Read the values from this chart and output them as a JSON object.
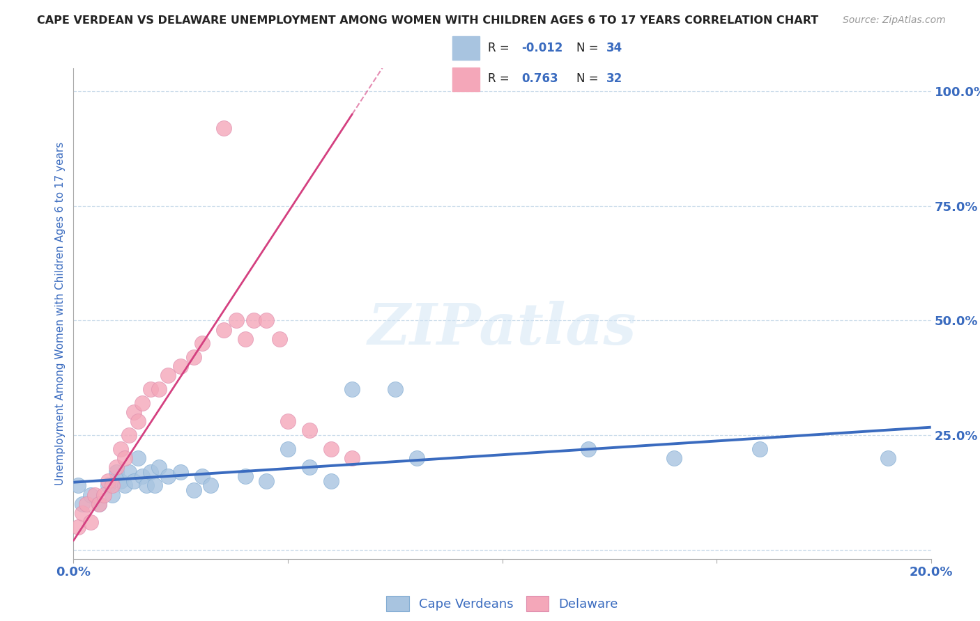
{
  "title": "CAPE VERDEAN VS DELAWARE UNEMPLOYMENT AMONG WOMEN WITH CHILDREN AGES 6 TO 17 YEARS CORRELATION CHART",
  "source": "Source: ZipAtlas.com",
  "ylabel": "Unemployment Among Women with Children Ages 6 to 17 years",
  "watermark": "ZIPatlas",
  "xlim": [
    0.0,
    0.2
  ],
  "ylim": [
    -0.02,
    1.05
  ],
  "ytick_positions": [
    0.0,
    0.25,
    0.5,
    0.75,
    1.0
  ],
  "ytick_labels": [
    "",
    "25.0%",
    "50.0%",
    "75.0%",
    "100.0%"
  ],
  "cape_verdean_color": "#a8c4e0",
  "delaware_color": "#f4a7b9",
  "trendline_cv_color": "#3a6bbf",
  "trendline_de_color": "#d44080",
  "legend_r_cv": "-0.012",
  "legend_n_cv": "34",
  "legend_r_de": "0.763",
  "legend_n_de": "32",
  "cv_x": [
    0.001,
    0.002,
    0.004,
    0.006,
    0.008,
    0.009,
    0.01,
    0.011,
    0.012,
    0.013,
    0.014,
    0.015,
    0.016,
    0.017,
    0.018,
    0.019,
    0.02,
    0.022,
    0.025,
    0.028,
    0.03,
    0.032,
    0.04,
    0.045,
    0.05,
    0.055,
    0.06,
    0.065,
    0.075,
    0.08,
    0.12,
    0.14,
    0.16,
    0.19
  ],
  "cv_y": [
    0.14,
    0.1,
    0.12,
    0.1,
    0.14,
    0.12,
    0.17,
    0.15,
    0.14,
    0.17,
    0.15,
    0.2,
    0.16,
    0.14,
    0.17,
    0.14,
    0.18,
    0.16,
    0.17,
    0.13,
    0.16,
    0.14,
    0.16,
    0.15,
    0.22,
    0.18,
    0.15,
    0.35,
    0.35,
    0.2,
    0.22,
    0.2,
    0.22,
    0.2
  ],
  "de_x": [
    0.001,
    0.002,
    0.003,
    0.004,
    0.005,
    0.006,
    0.007,
    0.008,
    0.009,
    0.01,
    0.011,
    0.012,
    0.013,
    0.014,
    0.015,
    0.016,
    0.018,
    0.02,
    0.022,
    0.025,
    0.028,
    0.03,
    0.035,
    0.038,
    0.04,
    0.042,
    0.045,
    0.048,
    0.05,
    0.055,
    0.06,
    0.065
  ],
  "de_y": [
    0.05,
    0.08,
    0.1,
    0.06,
    0.12,
    0.1,
    0.12,
    0.15,
    0.14,
    0.18,
    0.22,
    0.2,
    0.25,
    0.3,
    0.28,
    0.32,
    0.35,
    0.35,
    0.38,
    0.4,
    0.42,
    0.45,
    0.48,
    0.5,
    0.46,
    0.5,
    0.5,
    0.46,
    0.28,
    0.26,
    0.22,
    0.2
  ],
  "de_outlier_x": [
    0.035
  ],
  "de_outlier_y": [
    0.92
  ],
  "background_color": "#ffffff",
  "grid_color": "#c5d8e8",
  "title_color": "#222222",
  "tick_label_color": "#3a6bbf",
  "legend_text_color": "#222222",
  "legend_value_color": "#3a6bbf"
}
